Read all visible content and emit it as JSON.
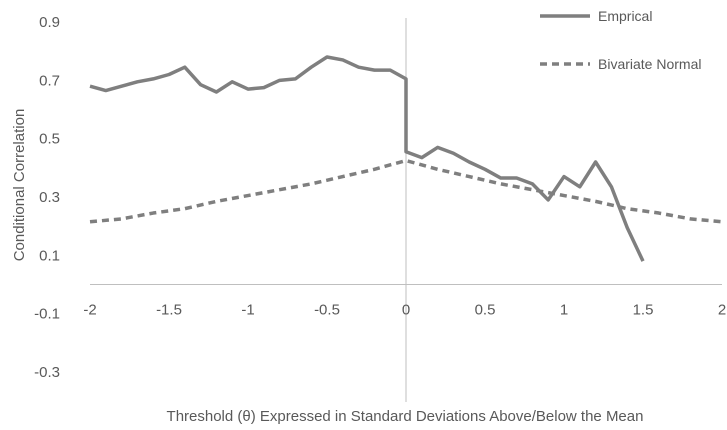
{
  "chart_data": {
    "type": "line",
    "title": "",
    "xlabel": "Threshold (θ) Expressed in Standard Deviations Above/Below the Mean",
    "ylabel": "Conditional Correlation",
    "xlim": [
      -2,
      2
    ],
    "ylim": [
      -0.3,
      0.9
    ],
    "x_ticks": [
      -2,
      -1.5,
      -1,
      -0.5,
      0,
      0.5,
      1,
      1.5,
      2
    ],
    "x_tick_labels": [
      "-2",
      "-1.5",
      "-1",
      "-0.5",
      "0",
      "0.5",
      "1",
      "1.5",
      "2"
    ],
    "y_ticks": [
      -0.3,
      -0.1,
      0.1,
      0.3,
      0.5,
      0.7,
      0.9
    ],
    "y_tick_labels": [
      "-0.3",
      "-0.1",
      "0.1",
      "0.3",
      "0.5",
      "0.7",
      "0.9"
    ],
    "grid": false,
    "legend_position": "top-right",
    "axis_color": "#bfbfbf",
    "series": [
      {
        "name": "Emprical",
        "style": "solid",
        "color": "#7f7f7f",
        "points": [
          [
            -2.0,
            0.68
          ],
          [
            -1.9,
            0.665
          ],
          [
            -1.8,
            0.68
          ],
          [
            -1.7,
            0.695
          ],
          [
            -1.6,
            0.705
          ],
          [
            -1.5,
            0.72
          ],
          [
            -1.4,
            0.745
          ],
          [
            -1.3,
            0.685
          ],
          [
            -1.2,
            0.66
          ],
          [
            -1.1,
            0.695
          ],
          [
            -1.0,
            0.67
          ],
          [
            -0.9,
            0.675
          ],
          [
            -0.8,
            0.7
          ],
          [
            -0.7,
            0.705
          ],
          [
            -0.6,
            0.745
          ],
          [
            -0.5,
            0.78
          ],
          [
            -0.4,
            0.77
          ],
          [
            -0.3,
            0.745
          ],
          [
            -0.2,
            0.735
          ],
          [
            -0.1,
            0.735
          ],
          [
            0.0,
            0.705
          ],
          [
            0.0,
            0.455
          ],
          [
            0.1,
            0.435
          ],
          [
            0.2,
            0.47
          ],
          [
            0.3,
            0.45
          ],
          [
            0.4,
            0.42
          ],
          [
            0.5,
            0.395
          ],
          [
            0.6,
            0.365
          ],
          [
            0.7,
            0.365
          ],
          [
            0.8,
            0.345
          ],
          [
            0.9,
            0.29
          ],
          [
            1.0,
            0.37
          ],
          [
            1.1,
            0.335
          ],
          [
            1.2,
            0.42
          ],
          [
            1.3,
            0.335
          ],
          [
            1.4,
            0.195
          ],
          [
            1.5,
            0.08
          ]
        ]
      },
      {
        "name": "Bivariate Normal",
        "style": "dashed",
        "color": "#7f7f7f",
        "points": [
          [
            -2.0,
            0.215
          ],
          [
            -1.8,
            0.225
          ],
          [
            -1.6,
            0.245
          ],
          [
            -1.4,
            0.26
          ],
          [
            -1.2,
            0.285
          ],
          [
            -1.0,
            0.305
          ],
          [
            -0.8,
            0.325
          ],
          [
            -0.6,
            0.345
          ],
          [
            -0.4,
            0.37
          ],
          [
            -0.2,
            0.395
          ],
          [
            0.0,
            0.425
          ],
          [
            0.2,
            0.395
          ],
          [
            0.4,
            0.37
          ],
          [
            0.6,
            0.345
          ],
          [
            0.8,
            0.325
          ],
          [
            1.0,
            0.305
          ],
          [
            1.2,
            0.285
          ],
          [
            1.4,
            0.26
          ],
          [
            1.6,
            0.245
          ],
          [
            1.8,
            0.225
          ],
          [
            2.0,
            0.215
          ]
        ]
      }
    ]
  }
}
